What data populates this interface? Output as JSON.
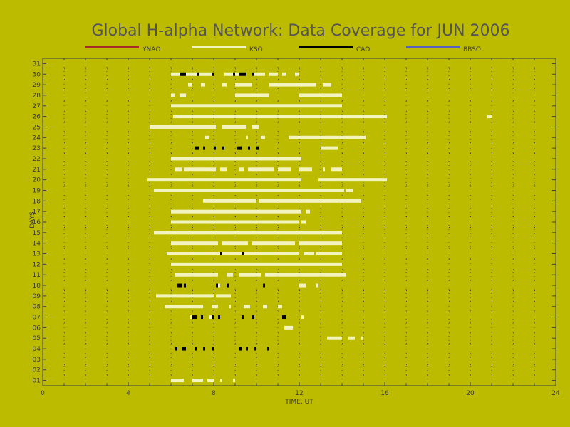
{
  "chart_data": {
    "type": "bar",
    "title": "Global H-alpha Network: Data Coverage for JUN 2006",
    "xlabel": "TIME, UT",
    "ylabel": "DAYS",
    "xlim": [
      0,
      24
    ],
    "ylim": [
      0.5,
      31.5
    ],
    "xticks": [
      "0",
      "4",
      "8",
      "12",
      "16",
      "20",
      "24"
    ],
    "yticks": [
      "01",
      "02",
      "03",
      "04",
      "05",
      "06",
      "07",
      "08",
      "09",
      "10",
      "11",
      "12",
      "13",
      "14",
      "15",
      "16",
      "17",
      "18",
      "19",
      "20",
      "21",
      "22",
      "23",
      "24",
      "25",
      "26",
      "27",
      "28",
      "29",
      "30",
      "31"
    ],
    "grid": true,
    "legend_position": "top",
    "colors": {
      "background": "#bdbb00",
      "axes": "#404040",
      "grid": "#404040"
    },
    "series": [
      {
        "name": "YNAO",
        "color": "#a52a2a",
        "intervals": []
      },
      {
        "name": "KSO",
        "color": "#f3f3c0",
        "intervals": [
          [
            1,
            6.0,
            6.6
          ],
          [
            1,
            7.0,
            7.5
          ],
          [
            1,
            7.7,
            8.0
          ],
          [
            1,
            8.3,
            8.4
          ],
          [
            1,
            8.9,
            9.0
          ],
          [
            5,
            13.3,
            14.0
          ],
          [
            5,
            14.3,
            14.6
          ],
          [
            5,
            14.9,
            15.0
          ],
          [
            6,
            11.3,
            11.7
          ],
          [
            7,
            6.9,
            7.1
          ],
          [
            7,
            7.8,
            8.0
          ],
          [
            7,
            12.1,
            12.2
          ],
          [
            8,
            5.7,
            7.5
          ],
          [
            8,
            7.9,
            8.2
          ],
          [
            8,
            8.7,
            8.8
          ],
          [
            8,
            9.4,
            9.7
          ],
          [
            8,
            10.3,
            10.5
          ],
          [
            8,
            11.0,
            11.2
          ],
          [
            9,
            5.3,
            8.0
          ],
          [
            9,
            8.1,
            8.8
          ],
          [
            10,
            8.1,
            8.3
          ],
          [
            10,
            12.0,
            12.3
          ],
          [
            10,
            12.8,
            12.9
          ],
          [
            11,
            6.2,
            8.2
          ],
          [
            11,
            8.6,
            8.9
          ],
          [
            11,
            9.2,
            10.2
          ],
          [
            11,
            10.4,
            14.2
          ],
          [
            12,
            6.0,
            14.0
          ],
          [
            13,
            5.8,
            12.0
          ],
          [
            13,
            12.2,
            12.7
          ],
          [
            13,
            12.8,
            14.0
          ],
          [
            14,
            6.0,
            8.2
          ],
          [
            14,
            8.4,
            9.6
          ],
          [
            14,
            9.8,
            11.8
          ],
          [
            14,
            12.0,
            14.0
          ],
          [
            15,
            5.2,
            14.0
          ],
          [
            16,
            6.0,
            12.0
          ],
          [
            16,
            12.1,
            12.3
          ],
          [
            17,
            6.0,
            12.1
          ],
          [
            17,
            12.3,
            12.5
          ],
          [
            18,
            7.5,
            10.0
          ],
          [
            18,
            10.1,
            14.9
          ],
          [
            19,
            5.2,
            14.1
          ],
          [
            19,
            14.2,
            14.5
          ],
          [
            20,
            4.9,
            12.1
          ],
          [
            20,
            12.9,
            16.1
          ],
          [
            21,
            6.2,
            6.5
          ],
          [
            21,
            6.6,
            8.1
          ],
          [
            21,
            8.3,
            8.6
          ],
          [
            21,
            9.2,
            9.4
          ],
          [
            21,
            9.6,
            10.8
          ],
          [
            21,
            11.0,
            11.6
          ],
          [
            21,
            12.0,
            12.6
          ],
          [
            21,
            13.1,
            13.2
          ],
          [
            21,
            13.5,
            14.0
          ],
          [
            22,
            6.0,
            12.1
          ],
          [
            23,
            13.0,
            13.8
          ],
          [
            24,
            7.6,
            7.8
          ],
          [
            24,
            9.5,
            9.6
          ],
          [
            24,
            10.2,
            10.4
          ],
          [
            24,
            11.5,
            15.1
          ],
          [
            25,
            5.0,
            8.1
          ],
          [
            25,
            8.4,
            9.5
          ],
          [
            25,
            9.8,
            10.1
          ],
          [
            26,
            6.1,
            16.1
          ],
          [
            26,
            20.8,
            21.0
          ],
          [
            27,
            6.0,
            14.0
          ],
          [
            28,
            6.0,
            6.2
          ],
          [
            28,
            6.4,
            6.7
          ],
          [
            28,
            9.0,
            10.6
          ],
          [
            28,
            12.0,
            14.0
          ],
          [
            29,
            6.8,
            7.0
          ],
          [
            29,
            7.4,
            7.6
          ],
          [
            29,
            8.4,
            8.6
          ],
          [
            29,
            9.0,
            9.8
          ],
          [
            29,
            10.6,
            12.8
          ],
          [
            29,
            13.1,
            13.5
          ],
          [
            30,
            6.0,
            8.0
          ],
          [
            30,
            8.5,
            9.5
          ],
          [
            30,
            9.8,
            10.4
          ],
          [
            30,
            10.6,
            11.0
          ],
          [
            30,
            11.2,
            11.4
          ],
          [
            30,
            11.8,
            12.0
          ]
        ]
      },
      {
        "name": "CAO",
        "color": "#000000",
        "intervals": [
          [
            4,
            6.2,
            6.3
          ],
          [
            4,
            6.5,
            6.7
          ],
          [
            4,
            7.1,
            7.2
          ],
          [
            4,
            7.5,
            7.6
          ],
          [
            4,
            7.9,
            8.0
          ],
          [
            4,
            9.2,
            9.3
          ],
          [
            4,
            9.5,
            9.6
          ],
          [
            4,
            9.9,
            10.0
          ],
          [
            4,
            10.5,
            10.6
          ],
          [
            7,
            7.0,
            7.2
          ],
          [
            7,
            7.4,
            7.5
          ],
          [
            7,
            7.9,
            8.0
          ],
          [
            7,
            8.2,
            8.3
          ],
          [
            7,
            9.3,
            9.4
          ],
          [
            7,
            9.8,
            9.9
          ],
          [
            7,
            11.2,
            11.4
          ],
          [
            10,
            6.3,
            6.5
          ],
          [
            10,
            6.6,
            6.7
          ],
          [
            10,
            8.1,
            8.2
          ],
          [
            10,
            8.6,
            8.7
          ],
          [
            10,
            10.3,
            10.4
          ],
          [
            13,
            8.3,
            8.4
          ],
          [
            13,
            9.3,
            9.4
          ],
          [
            23,
            7.1,
            7.3
          ],
          [
            23,
            7.5,
            7.6
          ],
          [
            23,
            8.0,
            8.1
          ],
          [
            23,
            8.4,
            8.5
          ],
          [
            23,
            9.1,
            9.3
          ],
          [
            23,
            9.6,
            9.7
          ],
          [
            23,
            10.0,
            10.1
          ],
          [
            30,
            6.4,
            6.7
          ],
          [
            30,
            7.2,
            7.3
          ],
          [
            30,
            7.9,
            8.0
          ],
          [
            30,
            8.9,
            9.0
          ],
          [
            30,
            9.2,
            9.5
          ],
          [
            30,
            9.8,
            9.9
          ]
        ]
      },
      {
        "name": "BBSO",
        "color": "#5560c0",
        "intervals": []
      }
    ]
  }
}
